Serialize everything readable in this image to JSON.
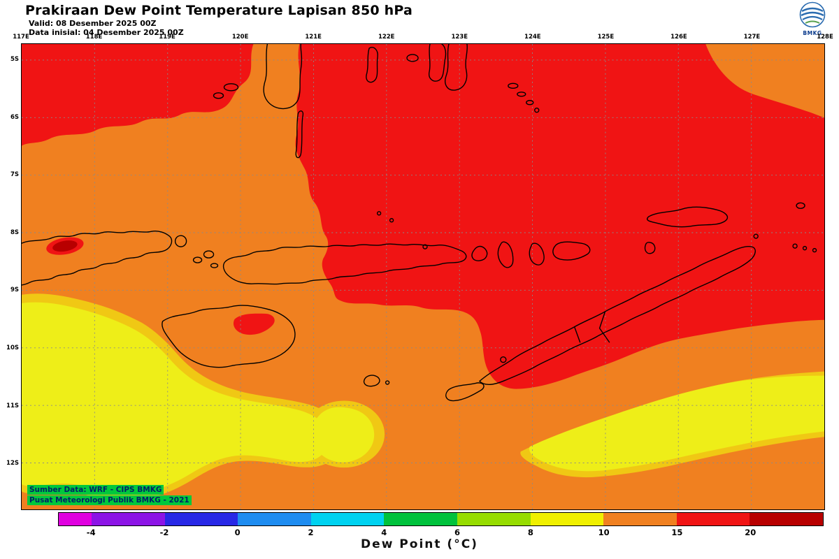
{
  "header": {
    "title": "Prakiraan Dew Point Temperature Lapisan 850 hPa",
    "valid_line": "Valid: 08 Desember 2025 00Z",
    "init_line": "Data inisial: 04 Desember 2025 00Z",
    "logo_text": "BMKG"
  },
  "map": {
    "lon_labels": [
      "117E",
      "118E",
      "119E",
      "120E",
      "121E",
      "122E",
      "123E",
      "124E",
      "125E",
      "126E",
      "127E",
      "128E"
    ],
    "lat_labels": [
      "5S",
      "6S",
      "7S",
      "8S",
      "9S",
      "10S",
      "11S",
      "12S"
    ],
    "credit_line1": "Sumber Data: WRF - CIPS BMKG",
    "credit_line2": "Pusat Meteorologi Publik BMKG - 2021",
    "palette": {
      "orange": "#f08020",
      "red": "#f01414",
      "dark_red": "#b80000",
      "yellow": "#eeee18",
      "gold": "#f0c814",
      "coastline": "#000000",
      "grid": "#8a8a8a",
      "credit_bg": "#00c83c",
      "credit_text": "#002266"
    }
  },
  "colorbar": {
    "label": "Dew Point (°C)",
    "segments": [
      {
        "value_range": "< -4",
        "color": "#e000e0",
        "flex": 0.45
      },
      {
        "value_range": "-4 to -2",
        "color": "#8c14e6",
        "flex": 1
      },
      {
        "value_range": "-2 to 0",
        "color": "#2828e6",
        "flex": 1
      },
      {
        "value_range": "0 to 2",
        "color": "#1e8cf0",
        "flex": 1
      },
      {
        "value_range": "2 to 4",
        "color": "#00d2f0",
        "flex": 1
      },
      {
        "value_range": "4 to 6",
        "color": "#00c23c",
        "flex": 1
      },
      {
        "value_range": "6 to 8",
        "color": "#96dc00",
        "flex": 1
      },
      {
        "value_range": "8 to 10",
        "color": "#f0f000",
        "flex": 1
      },
      {
        "value_range": "10 to 15",
        "color": "#f08020",
        "flex": 1
      },
      {
        "value_range": "15 to 20",
        "color": "#f01414",
        "flex": 1
      },
      {
        "value_range": "> 20",
        "color": "#b80000",
        "flex": 1
      }
    ],
    "ticks": [
      {
        "label": "-4",
        "pos": 4.31
      },
      {
        "label": "-2",
        "pos": 13.88
      },
      {
        "label": "0",
        "pos": 23.44
      },
      {
        "label": "2",
        "pos": 33.01
      },
      {
        "label": "4",
        "pos": 42.58
      },
      {
        "label": "6",
        "pos": 52.15
      },
      {
        "label": "8",
        "pos": 61.72
      },
      {
        "label": "10",
        "pos": 71.29
      },
      {
        "label": "15",
        "pos": 80.86
      },
      {
        "label": "20",
        "pos": 90.43
      }
    ]
  }
}
